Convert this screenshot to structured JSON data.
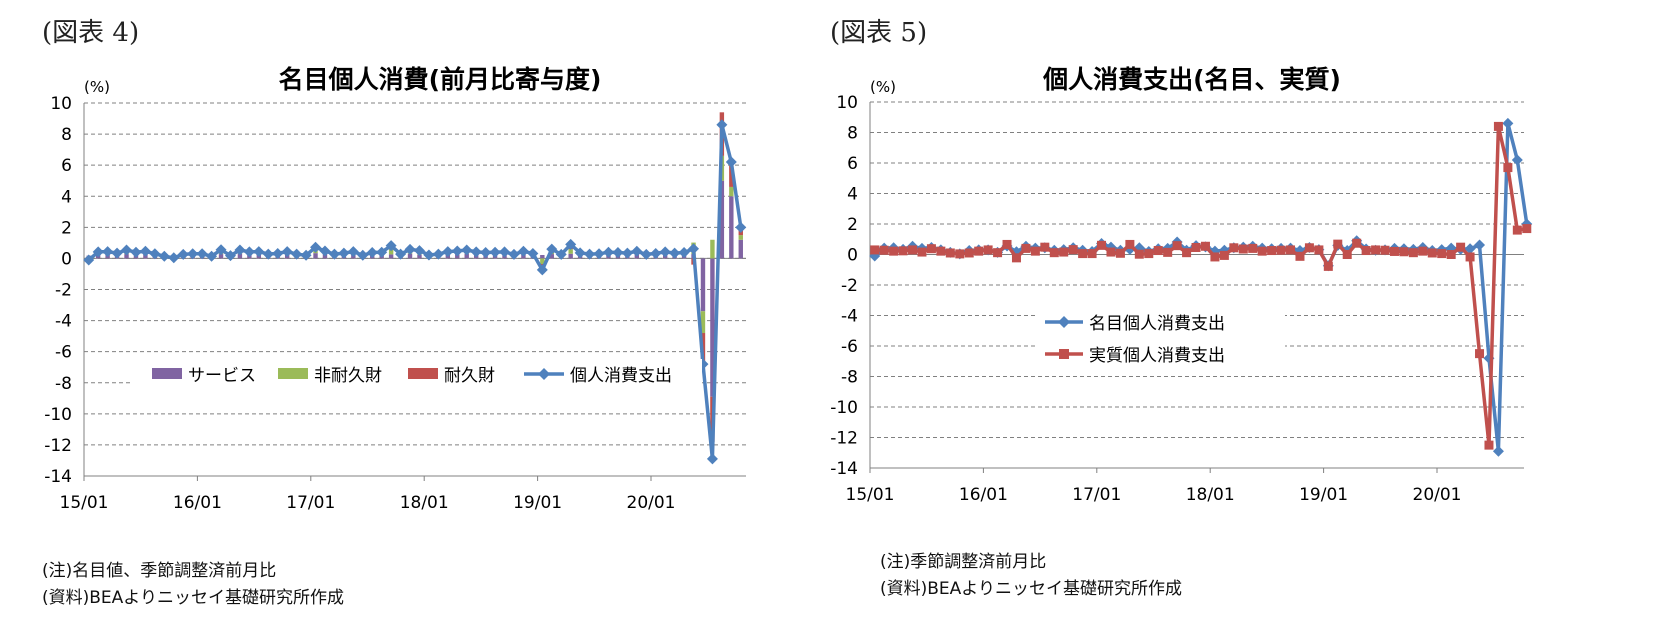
{
  "figures": [
    {
      "label": "(図表 4)"
    },
    {
      "label": "(図表 5)"
    }
  ],
  "notes": {
    "left": [
      "(注)名目値、季節調整済前月比",
      "(資料)BEAよりニッセイ基礎研究所作成"
    ],
    "right": [
      "(注)季節調整済前月比",
      "(資料)BEAよりニッセイ基礎研究所作成"
    ]
  },
  "colors": {
    "services": "#8064A2",
    "nondurables": "#9BBB59",
    "durables": "#C0504D",
    "pce_line": "#4F81BD",
    "real_line": "#C0504D",
    "grid": "#808080"
  },
  "chart_data": [
    {
      "type": "bar",
      "stacked": true,
      "title": "名目個人消費(前月比寄与度)",
      "unit_label": "(%)",
      "ylim": [
        -14,
        10
      ],
      "yticks": [
        10,
        8,
        6,
        4,
        2,
        0,
        -2,
        -4,
        -6,
        -8,
        -10,
        -12,
        -14
      ],
      "xticks": [
        "15/01",
        "16/01",
        "17/01",
        "18/01",
        "19/01",
        "20/01"
      ],
      "x_start": "2015-01",
      "legend_position": "center",
      "series": [
        {
          "name": "サービス",
          "kind": "bar",
          "values": [
            0.18,
            0.22,
            0.24,
            0.22,
            0.28,
            0.24,
            0.26,
            0.22,
            0.16,
            0.12,
            0.14,
            0.2,
            0.22,
            0.18,
            0.28,
            0.16,
            0.3,
            0.24,
            0.3,
            0.18,
            0.22,
            0.26,
            0.22,
            0.2,
            0.34,
            0.3,
            0.24,
            0.22,
            0.26,
            0.2,
            0.22,
            0.24,
            0.26,
            0.22,
            0.3,
            0.24,
            0.22,
            0.18,
            0.22,
            0.28,
            0.3,
            0.26,
            0.32,
            0.28,
            0.26,
            0.24,
            0.3,
            0.22,
            0.22,
            0.28,
            0.24,
            0.3,
            0.2,
            0.18,
            0.22,
            0.32,
            0.28,
            0.26,
            0.3,
            0.22,
            0.24,
            0.24,
            0.22,
            0.22,
            0.28,
            -3.4,
            -8.9,
            5.0,
            4.0,
            1.2
          ]
        },
        {
          "name": "非耐久財",
          "kind": "bar",
          "values": [
            -0.1,
            0.1,
            0.12,
            0.06,
            0.14,
            0.1,
            0.1,
            0.04,
            -0.02,
            -0.04,
            0.06,
            0.06,
            0.04,
            -0.06,
            0.12,
            0.02,
            0.12,
            0.1,
            0.08,
            0.04,
            0.08,
            0.1,
            0.02,
            0.02,
            0.18,
            0.1,
            0.0,
            0.08,
            0.1,
            0.02,
            0.06,
            0.08,
            0.34,
            0.04,
            0.14,
            0.16,
            0.0,
            0.04,
            0.14,
            0.12,
            0.14,
            0.1,
            0.04,
            0.08,
            0.1,
            0.02,
            0.1,
            0.06,
            -0.36,
            0.18,
            0.02,
            0.3,
            0.1,
            0.06,
            0.06,
            0.02,
            0.06,
            0.04,
            0.1,
            0.04,
            0.06,
            0.12,
            0.08,
            0.1,
            0.74,
            -1.4,
            1.2,
            1.6,
            0.6,
            0.3
          ]
        },
        {
          "name": "耐久財",
          "kind": "bar",
          "values": [
            -0.08,
            0.1,
            0.08,
            0.06,
            0.12,
            0.06,
            0.1,
            0.04,
            0.0,
            -0.04,
            0.06,
            0.04,
            0.04,
            0.02,
            0.16,
            0.0,
            0.12,
            0.08,
            0.06,
            0.06,
            0.02,
            0.08,
            0.04,
            -0.02,
            0.2,
            0.08,
            0.04,
            0.04,
            0.08,
            -0.02,
            0.1,
            0.08,
            0.22,
            0.02,
            0.14,
            0.1,
            0.0,
            0.06,
            0.08,
            0.08,
            0.1,
            0.06,
            0.02,
            0.04,
            0.06,
            0.0,
            0.06,
            0.04,
            -0.6,
            0.14,
            0.0,
            0.3,
            0.06,
            0.04,
            0.02,
            0.06,
            0.04,
            0.04,
            0.06,
            0.0,
            0.02,
            0.06,
            0.04,
            0.06,
            -0.4,
            -2.0,
            -2.9,
            2.8,
            1.5,
            0.5
          ]
        },
        {
          "name": "個人消費支出",
          "kind": "line",
          "values": [
            -0.1,
            0.42,
            0.44,
            0.34,
            0.54,
            0.4,
            0.46,
            0.3,
            0.14,
            0.04,
            0.26,
            0.3,
            0.3,
            0.14,
            0.56,
            0.18,
            0.54,
            0.42,
            0.44,
            0.28,
            0.32,
            0.44,
            0.28,
            0.2,
            0.72,
            0.48,
            0.28,
            0.34,
            0.44,
            0.2,
            0.38,
            0.4,
            0.82,
            0.28,
            0.58,
            0.5,
            0.22,
            0.28,
            0.44,
            0.48,
            0.54,
            0.42,
            0.38,
            0.4,
            0.42,
            0.26,
            0.46,
            0.32,
            -0.74,
            0.6,
            0.26,
            0.9,
            0.36,
            0.28,
            0.3,
            0.4,
            0.38,
            0.34,
            0.46,
            0.26,
            0.32,
            0.42,
            0.34,
            0.38,
            0.62,
            -6.8,
            -12.9,
            8.6,
            6.2,
            2.0
          ]
        }
      ]
    },
    {
      "type": "line",
      "title": "個人消費支出(名目、実質)",
      "unit_label": "(%)",
      "ylim": [
        -14,
        10
      ],
      "yticks": [
        10,
        8,
        6,
        4,
        2,
        0,
        -2,
        -4,
        -6,
        -8,
        -10,
        -12,
        -14
      ],
      "xticks": [
        "15/01",
        "16/01",
        "17/01",
        "18/01",
        "19/01",
        "20/01"
      ],
      "x_start": "2015-01",
      "legend_position": "center-left",
      "series": [
        {
          "name": "名目個人消費支出",
          "marker": "diamond",
          "values": [
            -0.1,
            0.42,
            0.44,
            0.34,
            0.54,
            0.4,
            0.46,
            0.3,
            0.14,
            0.04,
            0.26,
            0.3,
            0.3,
            0.14,
            0.56,
            0.18,
            0.54,
            0.42,
            0.44,
            0.28,
            0.32,
            0.44,
            0.28,
            0.2,
            0.72,
            0.48,
            0.28,
            0.34,
            0.44,
            0.2,
            0.38,
            0.4,
            0.82,
            0.28,
            0.58,
            0.5,
            0.22,
            0.28,
            0.44,
            0.48,
            0.54,
            0.42,
            0.38,
            0.4,
            0.42,
            0.26,
            0.46,
            0.32,
            -0.74,
            0.6,
            0.26,
            0.9,
            0.36,
            0.28,
            0.3,
            0.4,
            0.38,
            0.34,
            0.46,
            0.26,
            0.32,
            0.42,
            0.34,
            0.38,
            0.62,
            -6.8,
            -12.9,
            8.6,
            6.2,
            2.0
          ]
        },
        {
          "name": "実質個人消費支出",
          "marker": "square",
          "values": [
            0.3,
            0.28,
            0.22,
            0.24,
            0.3,
            0.16,
            0.38,
            0.22,
            0.1,
            0.04,
            0.1,
            0.22,
            0.3,
            0.12,
            0.66,
            -0.22,
            0.4,
            0.22,
            0.48,
            0.12,
            0.16,
            0.32,
            0.06,
            0.06,
            0.6,
            0.16,
            0.08,
            0.66,
            0.02,
            0.06,
            0.26,
            0.14,
            0.58,
            0.12,
            0.46,
            0.54,
            -0.16,
            -0.06,
            0.44,
            0.36,
            0.4,
            0.22,
            0.26,
            0.28,
            0.3,
            -0.12,
            0.44,
            0.3,
            -0.78,
            0.68,
            0.0,
            0.74,
            0.26,
            0.3,
            0.28,
            0.2,
            0.18,
            0.12,
            0.22,
            0.1,
            0.06,
            0.0,
            0.48,
            -0.16,
            -6.5,
            -12.5,
            8.4,
            5.7,
            1.6,
            1.7
          ]
        }
      ]
    }
  ]
}
